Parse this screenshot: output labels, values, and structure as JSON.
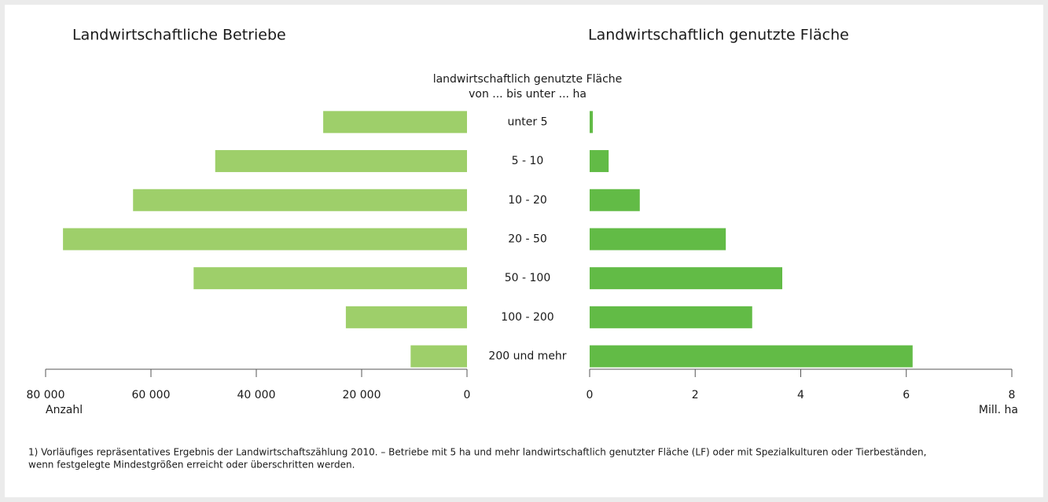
{
  "chart_data": [
    {
      "type": "barh",
      "title": "Landwirtschaftliche Betriebe",
      "category_title": [
        "landwirtschaftlich genutzte Fläche",
        "von ... bis unter ... ha"
      ],
      "categories": [
        "unter 5",
        "5 - 10",
        "10 - 20",
        "20 - 50",
        "50 - 100",
        "100 - 200",
        "200 und mehr"
      ],
      "values": [
        27300,
        47800,
        63400,
        76700,
        51900,
        23000,
        10700
      ],
      "color": "#9ecf6a",
      "xlabel": "Anzahl",
      "xlim": [
        80000,
        0
      ],
      "xticks": [
        {
          "value": 80000,
          "label": "80 000"
        },
        {
          "value": 60000,
          "label": "60 000"
        },
        {
          "value": 40000,
          "label": "40 000"
        },
        {
          "value": 20000,
          "label": "20 000"
        },
        0
      ]
    },
    {
      "type": "barh",
      "title": "Landwirtschaftlich genutzte Fläche",
      "values": [
        0.06,
        0.36,
        0.95,
        2.58,
        3.65,
        3.08,
        6.12
      ],
      "color": "#62bb46",
      "xlabel": "Mill. ha",
      "xlim": [
        0,
        8
      ],
      "xticks": [
        0,
        2,
        4,
        6,
        8
      ]
    }
  ],
  "footnote": [
    "1) Vorläufiges repräsentatives Ergebnis der Landwirtschaftszählung 2010. – Betriebe mit 5 ha und mehr landwirtschaftlich genutzter Fläche (LF) oder mit Spezialkulturen oder  Tierbeständen,",
    "wenn festgelegte Mindestgrößen erreicht oder überschritten werden."
  ]
}
